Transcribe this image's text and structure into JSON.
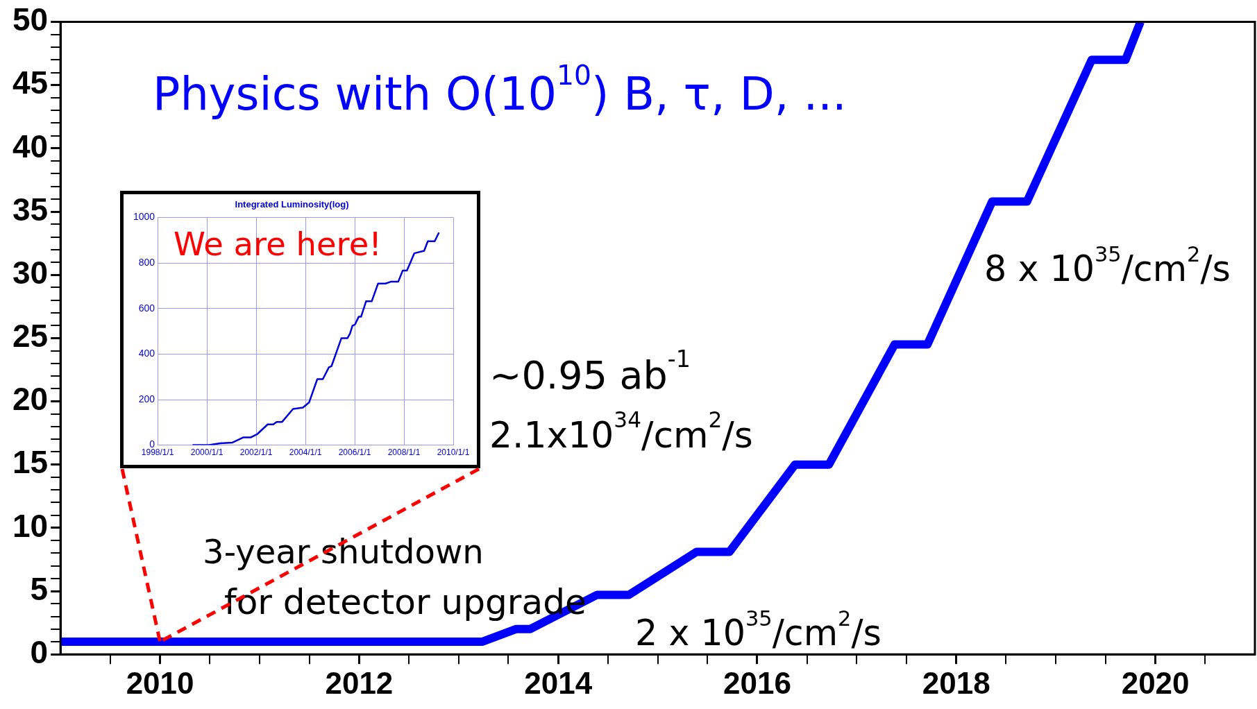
{
  "chart_data": [
    {
      "type": "line",
      "x": [
        2009,
        2013.24,
        2013.58,
        2013.72,
        2014.39,
        2014.71,
        2015.39,
        2015.72,
        2016.38,
        2016.72,
        2017.38,
        2017.71,
        2018.36,
        2018.71,
        2019.36,
        2019.7,
        2019.85
      ],
      "values": [
        1,
        1,
        2,
        2,
        4.7,
        4.7,
        8.1,
        8.1,
        15,
        15,
        24.5,
        24.5,
        35.8,
        35.8,
        47,
        47,
        50
      ],
      "color": "#0000ff",
      "marker": "none",
      "line_style": "solid",
      "xlim": [
        2009,
        2021
      ],
      "xticks": [
        {
          "value": 2009.5,
          "label": null
        },
        2010,
        {
          "value": 2010.5,
          "label": null
        },
        {
          "value": 2011,
          "label": null
        },
        {
          "value": 2011.5,
          "label": null
        },
        2012,
        {
          "value": 2012.5,
          "label": null
        },
        {
          "value": 2013,
          "label": null
        },
        {
          "value": 2013.5,
          "label": null
        },
        2014,
        {
          "value": 2014.5,
          "label": null
        },
        {
          "value": 2015,
          "label": null
        },
        {
          "value": 2015.5,
          "label": null
        },
        2016,
        {
          "value": 2016.5,
          "label": null
        },
        {
          "value": 2017,
          "label": null
        },
        {
          "value": 2017.5,
          "label": null
        },
        2018,
        {
          "value": 2018.5,
          "label": null
        },
        {
          "value": 2019,
          "label": null
        },
        {
          "value": 2019.5,
          "label": null
        },
        2020,
        {
          "value": 2020.5,
          "label": null
        }
      ],
      "ylim": [
        0,
        50
      ],
      "yticks": [
        0,
        {
          "value": 1,
          "label": null
        },
        {
          "value": 2,
          "label": null
        },
        {
          "value": 3,
          "label": null
        },
        {
          "value": 4,
          "label": null
        },
        5,
        {
          "value": 6,
          "label": null
        },
        {
          "value": 7,
          "label": null
        },
        {
          "value": 8,
          "label": null
        },
        {
          "value": 9,
          "label": null
        },
        10,
        {
          "value": 11,
          "label": null
        },
        {
          "value": 12,
          "label": null
        },
        {
          "value": 13,
          "label": null
        },
        {
          "value": 14,
          "label": null
        },
        15,
        {
          "value": 16,
          "label": null
        },
        {
          "value": 17,
          "label": null
        },
        {
          "value": 18,
          "label": null
        },
        {
          "value": 19,
          "label": null
        },
        20,
        {
          "value": 21,
          "label": null
        },
        {
          "value": 22,
          "label": null
        },
        {
          "value": 23,
          "label": null
        },
        {
          "value": 24,
          "label": null
        },
        25,
        {
          "value": 26,
          "label": null
        },
        {
          "value": 27,
          "label": null
        },
        {
          "value": 28,
          "label": null
        },
        {
          "value": 29,
          "label": null
        },
        30,
        {
          "value": 31,
          "label": null
        },
        {
          "value": 32,
          "label": null
        },
        {
          "value": 33,
          "label": null
        },
        {
          "value": 34,
          "label": null
        },
        35,
        {
          "value": 36,
          "label": null
        },
        {
          "value": 37,
          "label": null
        },
        {
          "value": 38,
          "label": null
        },
        {
          "value": 39,
          "label": null
        },
        40,
        {
          "value": 41,
          "label": null
        },
        {
          "value": 42,
          "label": null
        },
        {
          "value": 43,
          "label": null
        },
        {
          "value": 44,
          "label": null
        },
        45,
        {
          "value": 46,
          "label": null
        },
        {
          "value": 47,
          "label": null
        },
        {
          "value": 48,
          "label": null
        },
        {
          "value": 49,
          "label": null
        },
        50
      ],
      "annotations": [
        "Physics with O(10$^{10}$) B, τ, D, ...",
        "3-year shutdown",
        "for detector upgrade",
        "2 x 10$^{35}$/cm$^{2}$/s",
        "8 x 10$^{35}$/cm$^{2}$/s"
      ]
    },
    {
      "type": "line",
      "title": "Integrated Luminosity(log)",
      "x": [
        "1999-06-01",
        "2000-02-01",
        "2000-07-15",
        "2001-01-15",
        "2001-06-27",
        "2001-10-15",
        "2002-01-20",
        "2002-06-20",
        "2002-09-12",
        "2002-10-30",
        "2003-01-20",
        "2003-07-01",
        "2003-11-25",
        "2004-02-25",
        "2004-06-25",
        "2004-09-15",
        "2004-12-15",
        "2005-01-22",
        "2005-06-18",
        "2005-09-16",
        "2005-10-23",
        "2005-11-28",
        "2006-01-05",
        "2006-03-01",
        "2006-04-05",
        "2006-06-18",
        "2006-09-10",
        "2006-12-13",
        "2007-04-01",
        "2007-06-20",
        "2007-10-08",
        "2007-12-13",
        "2008-02-14",
        "2008-06-03",
        "2008-10-27",
        "2008-12-20",
        "2009-04-01",
        "2009-06-03"
      ],
      "values": [
        0,
        0,
        8,
        11,
        34,
        34,
        49,
        91,
        91,
        102,
        102,
        159,
        165,
        188,
        290,
        290,
        342,
        347,
        470,
        470,
        490,
        524,
        530,
        564,
        564,
        632,
        632,
        710,
        710,
        718,
        718,
        767,
        767,
        843,
        854,
        896,
        896,
        934
      ],
      "color": "#0000dd",
      "marker": "none",
      "grid": true,
      "xlim": [
        "1998-01-01",
        "2010-01-01"
      ],
      "xticks": [
        {
          "value": "1998-01-01",
          "label": "1998/1/1"
        },
        {
          "value": "2000-01-01",
          "label": "2000/1/1"
        },
        {
          "value": "2002-01-01",
          "label": "2002/1/1"
        },
        {
          "value": "2004-01-01",
          "label": "2004/1/1"
        },
        {
          "value": "2006-01-01",
          "label": "2006/1/1"
        },
        {
          "value": "2008-01-01",
          "label": "2008/1/1"
        },
        {
          "value": "2010-01-01",
          "label": "2010/1/1"
        }
      ],
      "ylim": [
        0,
        1000
      ],
      "yticks": [
        0,
        200,
        400,
        600,
        800,
        1000
      ],
      "annotations": [
        "We are here!",
        "~0.95 ab$^{-1}$",
        "2.1x10$^{34}$/cm$^{2}$/s"
      ]
    }
  ]
}
